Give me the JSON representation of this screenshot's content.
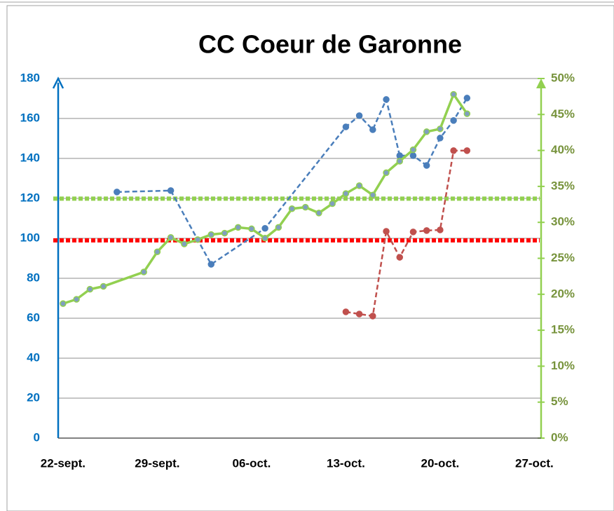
{
  "chart_data": {
    "type": "line",
    "title": "CC Coeur de Garonne",
    "xlim": [
      -0.36,
      35.5
    ],
    "xticks": [
      {
        "value": 0,
        "label": "22-sept."
      },
      {
        "value": 7,
        "label": "29-sept."
      },
      {
        "value": 14,
        "label": "06-oct."
      },
      {
        "value": 21,
        "label": "13-oct."
      },
      {
        "value": 28,
        "label": "20-oct."
      },
      {
        "value": 35,
        "label": "27-oct."
      }
    ],
    "ylim": [
      0,
      180
    ],
    "yticks": [
      0,
      20,
      40,
      60,
      80,
      100,
      120,
      140,
      160,
      180
    ],
    "y2lim": [
      0,
      50
    ],
    "y2ticks": [
      {
        "value": 0,
        "label": "0%"
      },
      {
        "value": 5,
        "label": "5%"
      },
      {
        "value": 10,
        "label": "10%"
      },
      {
        "value": 15,
        "label": "15%"
      },
      {
        "value": 20,
        "label": "20%"
      },
      {
        "value": 25,
        "label": "25%"
      },
      {
        "value": 30,
        "label": "30%"
      },
      {
        "value": 35,
        "label": "35%"
      },
      {
        "value": 40,
        "label": "40%"
      },
      {
        "value": 45,
        "label": "45%"
      },
      {
        "value": 50,
        "label": "50%"
      }
    ],
    "grid": true,
    "y_color": "#0070c0",
    "y2_color": "#77933c",
    "series": [
      {
        "color": "#4a7ebb",
        "dashed": true,
        "axis": "y",
        "x": [
          4,
          8,
          11,
          15,
          21,
          22,
          23,
          24,
          25,
          26,
          27,
          28,
          29,
          30
        ],
        "values": [
          123.2,
          123.9,
          87,
          105,
          155.8,
          161.4,
          154.4,
          169.5,
          141.4,
          141.4,
          136.5,
          150.2,
          159,
          170.2
        ]
      },
      {
        "color": "#c0504d",
        "dashed": true,
        "axis": "y",
        "x": [
          21,
          22,
          23,
          24,
          25,
          26,
          27,
          28,
          29,
          30
        ],
        "values": [
          63.2,
          62.1,
          61.1,
          103.5,
          90.5,
          103.2,
          103.9,
          104.2,
          143.9,
          143.9
        ]
      },
      {
        "color": "#92d050",
        "dashed": false,
        "axis": "y2",
        "x": [
          0,
          1,
          2,
          3,
          6,
          7,
          8,
          9,
          10,
          11,
          12,
          13,
          14,
          15,
          16,
          17,
          18,
          19,
          20,
          21,
          22,
          23,
          24,
          25,
          26,
          27,
          28,
          29,
          30
        ],
        "values": [
          18.7,
          19.3,
          20.7,
          21.1,
          23.1,
          25.9,
          27.9,
          27.0,
          27.6,
          28.3,
          28.5,
          29.3,
          29.1,
          27.8,
          29.3,
          31.9,
          32.1,
          31.3,
          32.6,
          34.0,
          35.1,
          33.8,
          36.9,
          38.5,
          40.1,
          42.6,
          43.0,
          47.8,
          45.1
        ]
      }
    ],
    "reference_lines": [
      {
        "value": 99,
        "axis": "y",
        "color": "#ff0000"
      },
      {
        "value": 33.3,
        "axis": "y2",
        "color": "#92d050"
      }
    ]
  }
}
